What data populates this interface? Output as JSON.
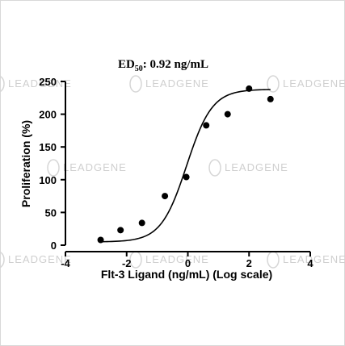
{
  "chart_data": {
    "type": "scatter",
    "title_prefix": "ED",
    "title_sub": "50",
    "title_suffix": ": 0.92 ng/mL",
    "xlabel": "Flt-3 Ligand (ng/mL) (Log scale)",
    "ylabel": "Proliferation (%)",
    "xlim": [
      -4,
      4
    ],
    "ylim": [
      0,
      250
    ],
    "xticks": [
      -4,
      -2,
      0,
      2,
      4
    ],
    "yticks": [
      0,
      50,
      100,
      150,
      200,
      250
    ],
    "xtick_labels": [
      "-4",
      "-2",
      "0",
      "2",
      "4"
    ],
    "ytick_labels": [
      "0",
      "50",
      "100",
      "150",
      "200",
      "250"
    ],
    "grid": false,
    "points": [
      {
        "x": -2.85,
        "y": 8
      },
      {
        "x": -2.2,
        "y": 23
      },
      {
        "x": -1.5,
        "y": 34
      },
      {
        "x": -0.75,
        "y": 75
      },
      {
        "x": -0.05,
        "y": 104
      },
      {
        "x": 0.6,
        "y": 183
      },
      {
        "x": 1.3,
        "y": 200
      },
      {
        "x": 2.0,
        "y": 239
      },
      {
        "x": 2.7,
        "y": 223
      }
    ],
    "fit_curve": {
      "model": "four-parameter logistic",
      "bottom": 5,
      "top": 238,
      "log_ec50": -0.04,
      "hill_slope": 0.52,
      "x_range": [
        -2.85,
        2.7
      ]
    }
  },
  "watermark": {
    "text": "LEADGENE",
    "color": "#cfcfcf"
  }
}
